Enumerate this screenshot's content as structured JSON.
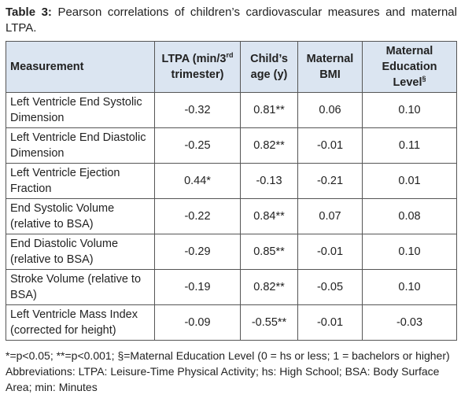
{
  "caption": {
    "label": "Table 3:",
    "text": "Pearson correlations of children’s cardiovascular measures and maternal LTPA."
  },
  "table": {
    "header": [
      "Measurement",
      {
        "text": "LTPA (min/3",
        "sup": "rd",
        "tail": " trimester)"
      },
      "Child’s age (y)",
      "Maternal BMI",
      {
        "text": "Maternal Education Level",
        "sup": "§"
      }
    ],
    "rows": [
      [
        "Left Ventricle End Systolic Dimension",
        "-0.32",
        "0.81**",
        "0.06",
        "0.10"
      ],
      [
        "Left Ventricle End Diastolic Dimension",
        "-0.25",
        "0.82**",
        "-0.01",
        "0.11"
      ],
      [
        "Left Ventricle Ejection Fraction",
        "0.44*",
        "-0.13",
        "-0.21",
        "0.01"
      ],
      [
        "End Systolic Volume (relative to BSA)",
        "-0.22",
        "0.84**",
        "0.07",
        "0.08"
      ],
      [
        "End Diastolic Volume (relative to BSA)",
        "-0.29",
        "0.85**",
        "-0.01",
        "0.10"
      ],
      [
        "Stroke Volume (relative to BSA)",
        "-0.19",
        "0.82**",
        "-0.05",
        "0.10"
      ],
      [
        "Left Ventricle Mass Index (corrected for height)",
        "-0.09",
        "-0.55**",
        "-0.01",
        "-0.03"
      ]
    ]
  },
  "footnote": "*=p<0.05; **=p<0.001; §=Maternal Education Level (0 = hs or less; 1 = bachelors or higher) Abbreviations:  LTPA: Leisure-Time Physical Activity; hs: High School; BSA: Body Surface Area; min:  Minutes"
}
